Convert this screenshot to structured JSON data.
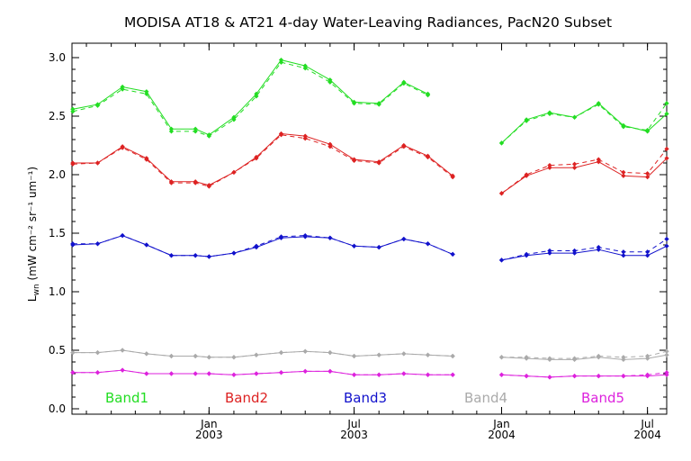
{
  "chart_data": {
    "type": "line",
    "title": "MODISA AT18 & AT21 4-day Water-Leaving Radiances, PacN20 Subset",
    "ylabel_main": "L",
    "ylabel_sub": "wn",
    "ylabel_units": "(mW cm⁻² sr⁻¹ um⁻¹)",
    "ylim": [
      0.0,
      3.0
    ],
    "yticks": [
      "0.0",
      "0.5",
      "1.0",
      "1.5",
      "2.0",
      "2.5",
      "3.0"
    ],
    "xlim": [
      "2002-07-14",
      "2004-07-25"
    ],
    "xticks": [
      {
        "date": "2003-01-01",
        "month": "Jan",
        "year": "2003"
      },
      {
        "date": "2003-07-01",
        "month": "Jul",
        "year": "2003"
      },
      {
        "date": "2004-01-01",
        "month": "Jan",
        "year": "2004"
      },
      {
        "date": "2004-07-01",
        "month": "Jul",
        "year": "2004"
      }
    ],
    "x": [
      "2002-07-15",
      "2002-08-15",
      "2002-09-15",
      "2002-10-15",
      "2002-11-15",
      "2002-12-15",
      "2003-01-01",
      "2003-02-01",
      "2003-03-01",
      "2003-04-01",
      "2003-05-01",
      "2003-06-01",
      "2003-07-01",
      "2003-08-01",
      "2003-09-01",
      "2003-10-01",
      "2003-11-01",
      "2003-12-01",
      "2004-01-01",
      "2004-02-01",
      "2004-03-01",
      "2004-04-01",
      "2004-05-01",
      "2004-06-01",
      "2004-07-01",
      "2004-07-25"
    ],
    "series": [
      {
        "name": "Band1",
        "color": "#22dd22",
        "at18": [
          2.56,
          2.6,
          2.75,
          2.71,
          2.39,
          2.39,
          2.34,
          2.49,
          2.69,
          2.98,
          2.93,
          2.81,
          2.62,
          2.61,
          2.79,
          2.69,
          null,
          null,
          2.27,
          2.47,
          2.53,
          2.49,
          2.61,
          2.42,
          2.37,
          2.52
        ],
        "at21": [
          2.54,
          2.59,
          2.73,
          2.69,
          2.37,
          2.37,
          2.33,
          2.47,
          2.67,
          2.96,
          2.91,
          2.79,
          2.61,
          2.6,
          2.78,
          2.68,
          null,
          null,
          2.27,
          2.46,
          2.52,
          2.49,
          2.6,
          2.41,
          2.38,
          2.61
        ]
      },
      {
        "name": "Band2",
        "color": "#dd2222",
        "at18": [
          2.1,
          2.1,
          2.24,
          2.14,
          1.94,
          1.94,
          1.91,
          2.02,
          2.15,
          2.35,
          2.33,
          2.26,
          2.13,
          2.11,
          2.25,
          2.16,
          1.99,
          null,
          1.84,
          1.99,
          2.06,
          2.06,
          2.11,
          1.99,
          1.98,
          2.14
        ],
        "at21": [
          2.09,
          2.1,
          2.23,
          2.13,
          1.93,
          1.93,
          1.9,
          2.02,
          2.14,
          2.34,
          2.31,
          2.24,
          2.12,
          2.1,
          2.24,
          2.15,
          1.98,
          null,
          1.84,
          2.0,
          2.08,
          2.09,
          2.13,
          2.02,
          2.01,
          2.22
        ]
      },
      {
        "name": "Band3",
        "color": "#1111cc",
        "at18": [
          1.4,
          1.41,
          1.48,
          1.4,
          1.31,
          1.31,
          1.3,
          1.33,
          1.38,
          1.46,
          1.47,
          1.46,
          1.39,
          1.38,
          1.45,
          1.41,
          1.32,
          null,
          1.27,
          1.31,
          1.33,
          1.33,
          1.36,
          1.31,
          1.31,
          1.39
        ],
        "at21": [
          1.41,
          1.41,
          1.48,
          1.4,
          1.31,
          1.31,
          1.3,
          1.33,
          1.39,
          1.47,
          1.48,
          1.46,
          1.39,
          1.38,
          1.45,
          1.41,
          1.32,
          null,
          1.27,
          1.32,
          1.35,
          1.35,
          1.38,
          1.34,
          1.34,
          1.45
        ],
        "dashed": true
      },
      {
        "name": "Band4",
        "color": "#aaaaaa",
        "at18": [
          0.48,
          0.48,
          0.5,
          0.47,
          0.45,
          0.45,
          0.44,
          0.44,
          0.46,
          0.48,
          0.49,
          0.48,
          0.45,
          0.46,
          0.47,
          0.46,
          0.45,
          null,
          0.44,
          0.43,
          0.42,
          0.42,
          0.44,
          0.42,
          0.43,
          0.46
        ],
        "at21": [
          0.48,
          0.48,
          0.5,
          0.47,
          0.45,
          0.45,
          0.44,
          0.44,
          0.46,
          0.48,
          0.49,
          0.48,
          0.45,
          0.46,
          0.47,
          0.46,
          0.45,
          null,
          0.44,
          0.44,
          0.43,
          0.43,
          0.45,
          0.44,
          0.45,
          0.49
        ]
      },
      {
        "name": "Band5",
        "color": "#dd22dd",
        "at18": [
          0.31,
          0.31,
          0.33,
          0.3,
          0.3,
          0.3,
          0.3,
          0.29,
          0.3,
          0.31,
          0.32,
          0.32,
          0.29,
          0.29,
          0.3,
          0.29,
          0.29,
          null,
          0.29,
          0.28,
          0.27,
          0.28,
          0.28,
          0.28,
          0.28,
          0.29
        ],
        "at21": [
          0.31,
          0.31,
          0.33,
          0.3,
          0.3,
          0.3,
          0.3,
          0.29,
          0.3,
          0.31,
          0.32,
          0.32,
          0.29,
          0.29,
          0.3,
          0.29,
          0.29,
          null,
          0.29,
          0.28,
          0.27,
          0.28,
          0.28,
          0.28,
          0.29,
          0.31
        ]
      }
    ],
    "grid": false,
    "legend": "bottom"
  }
}
